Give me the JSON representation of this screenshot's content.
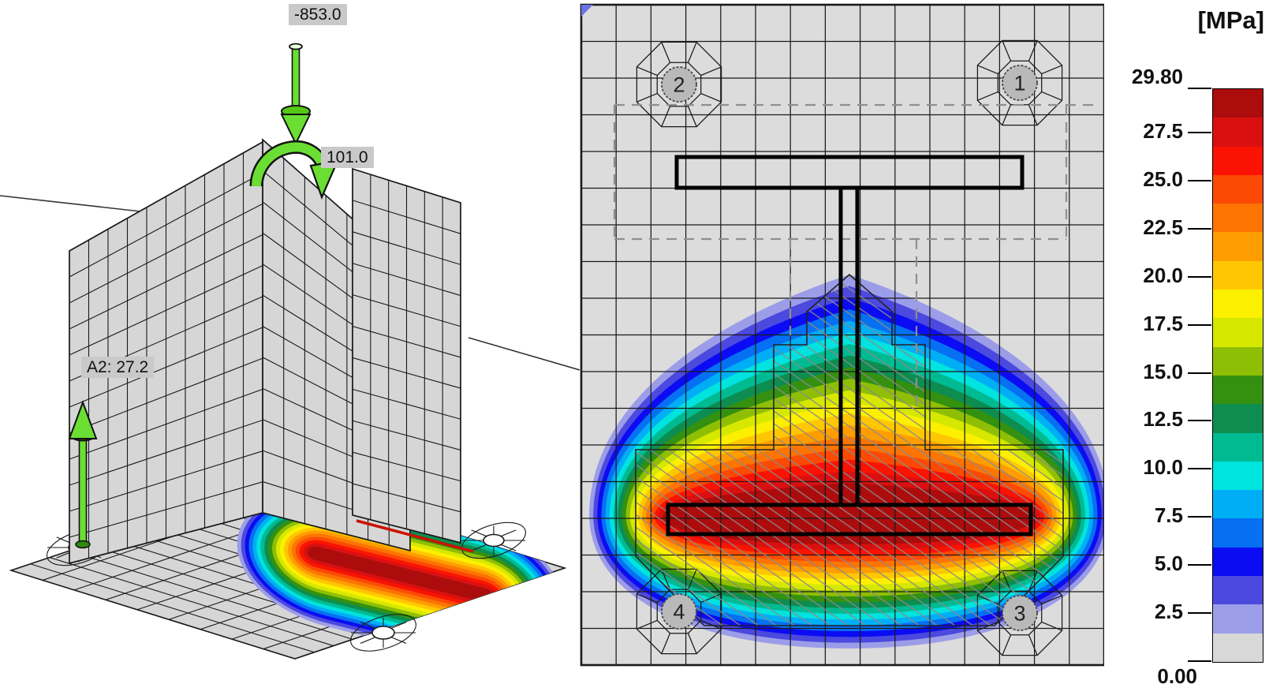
{
  "view3d": {
    "axial_force_label": "-853.0",
    "moment_label": "101.0",
    "anchor_force_label": "A2: 27.2"
  },
  "plan": {
    "anchor_labels": [
      "1",
      "2",
      "3",
      "4"
    ]
  },
  "legend": {
    "unit": "[MPa]",
    "max_label": "29.80",
    "min_label": "0.00",
    "max_value": 29.8,
    "min_value": 0.0,
    "tick_values": [
      27.5,
      25.0,
      22.5,
      20.0,
      17.5,
      15.0,
      12.5,
      10.0,
      7.5,
      5.0,
      2.5
    ],
    "tick_labels": [
      "27.5",
      "25.0",
      "22.5",
      "20.0",
      "17.5",
      "15.0",
      "12.5",
      "10.0",
      "7.5",
      "5.0",
      "2.5"
    ],
    "band_colors_top_to_bottom": [
      "#ac0c0c",
      "#da1010",
      "#fa1303",
      "#fc4a04",
      "#fd7403",
      "#fe9d01",
      "#ffc701",
      "#fcf000",
      "#d7e800",
      "#8fbf04",
      "#349110",
      "#0d8d4f",
      "#00ba92",
      "#00e3de",
      "#00aef5",
      "#0570f2",
      "#0b0cf3",
      "#4b49de",
      "#9c9de9",
      "#d8d8d8"
    ]
  },
  "colors": {
    "plate_fill": "#d6d6d6",
    "plan_plate_fill": "#dcdcdc",
    "mesh_line": "#1a1a1a",
    "label_bg": "#c9c9c9",
    "load_arrow_green": "#6ade33",
    "load_arrow_dark_green": "#3f9e12",
    "anchor_badge_fill": "#b9b9b9",
    "dashed_outline_gray": "#8f8f8f",
    "hatch_gray": "#8a8a8a",
    "corner_marker_blue": "#6a74e2"
  },
  "chart_data": {
    "type": "heatmap",
    "unit": "MPa",
    "scale": {
      "min": 0.0,
      "max": 29.8,
      "ticks": [
        0.0,
        2.5,
        5.0,
        7.5,
        10.0,
        12.5,
        15.0,
        17.5,
        20.0,
        22.5,
        25.0,
        27.5,
        29.8
      ]
    },
    "loads": {
      "axial_force": -853.0,
      "moment": 101.0
    },
    "anchor_readout": {
      "name": "A2",
      "value": 27.2
    },
    "anchors": [
      "1",
      "2",
      "3",
      "4"
    ]
  }
}
